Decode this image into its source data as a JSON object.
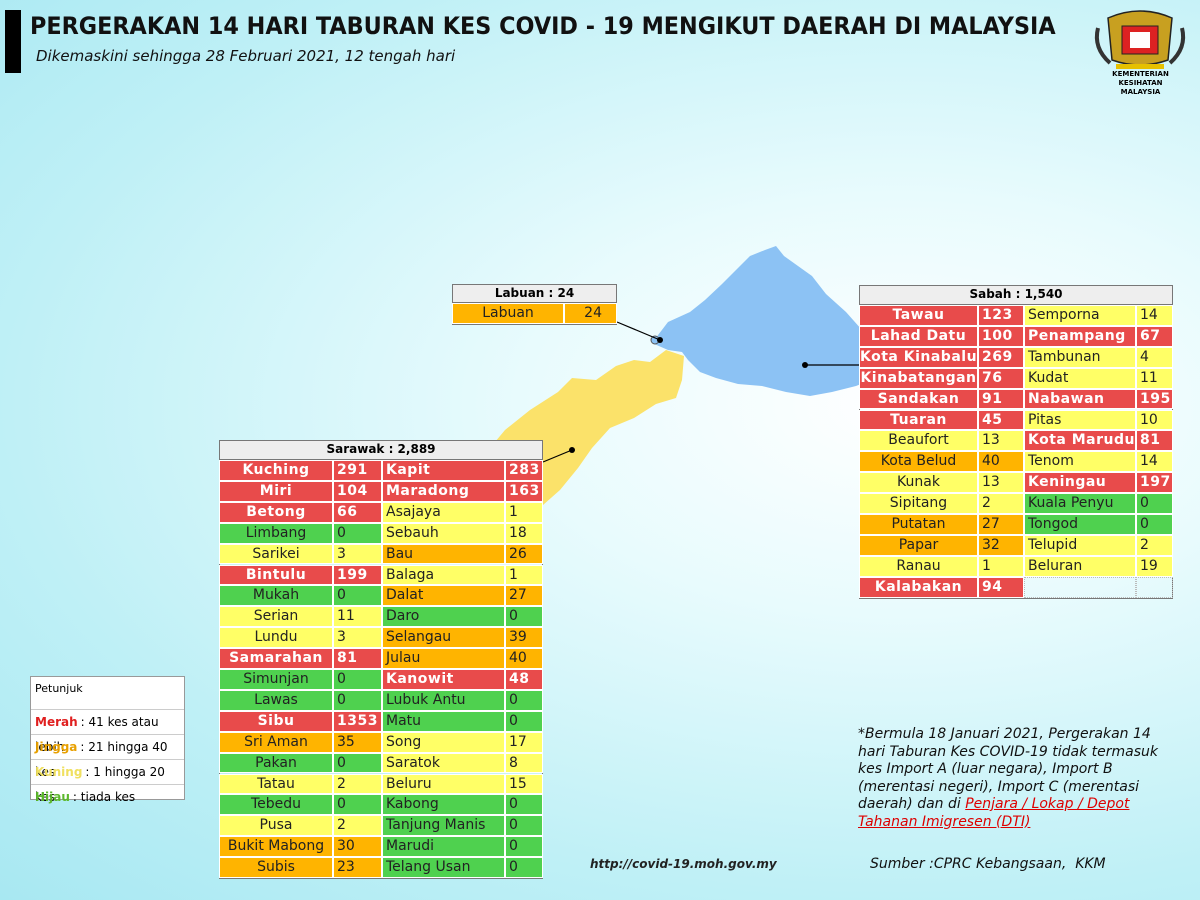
{
  "header": {
    "title": "PERGERAKAN 14 HARI TABURAN KES COVID - 19 MENGIKUT DAERAH DI MALAYSIA",
    "subtitle": "Dikemaskini sehingga 28 Februari 2021, 12 tengah hari"
  },
  "logo": {
    "text": "KEMENTERIAN KESIHATAN MALAYSIA"
  },
  "tables": {
    "labuan": {
      "title": "Labuan : 24",
      "left": [
        {
          "name": "Labuan",
          "count": 24,
          "color": "#ffb400"
        }
      ],
      "right": []
    },
    "sabah": {
      "title": "Sabah : 1,540",
      "left": [
        {
          "name": "Tawau",
          "count": 123,
          "color": "#e84b4b"
        },
        {
          "name": "Lahad Datu",
          "count": 100,
          "color": "#e84b4b"
        },
        {
          "name": "Kota Kinabalu",
          "count": 269,
          "color": "#e84b4b"
        },
        {
          "name": "Kinabatangan",
          "count": 76,
          "color": "#e84b4b"
        },
        {
          "name": "Sandakan",
          "count": 91,
          "color": "#e84b4b"
        },
        {
          "name": "Tuaran",
          "count": 45,
          "color": "#e84b4b"
        },
        {
          "name": "Beaufort",
          "count": 13,
          "color": "#ffff66"
        },
        {
          "name": "Kota Belud",
          "count": 40,
          "color": "#ffb400"
        },
        {
          "name": "Kunak",
          "count": 13,
          "color": "#ffff66"
        },
        {
          "name": "Sipitang",
          "count": 2,
          "color": "#ffff66"
        },
        {
          "name": "Putatan",
          "count": 27,
          "color": "#ffb400"
        },
        {
          "name": "Papar",
          "count": 32,
          "color": "#ffb400"
        },
        {
          "name": "Ranau",
          "count": 1,
          "color": "#ffff66"
        },
        {
          "name": "Kalabakan",
          "count": 94,
          "color": "#e84b4b"
        }
      ],
      "right": [
        {
          "name": "Semporna",
          "count": 14,
          "color": "#ffff66"
        },
        {
          "name": "Penampang",
          "count": 67,
          "color": "#e84b4b"
        },
        {
          "name": "Tambunan",
          "count": 4,
          "color": "#ffff66"
        },
        {
          "name": "Kudat",
          "count": 11,
          "color": "#ffff66"
        },
        {
          "name": "Nabawan",
          "count": 195,
          "color": "#e84b4b"
        },
        {
          "name": "Pitas",
          "count": 10,
          "color": "#ffff66"
        },
        {
          "name": "Kota Marudu",
          "count": 81,
          "color": "#e84b4b"
        },
        {
          "name": "Tenom",
          "count": 14,
          "color": "#ffff66"
        },
        {
          "name": "Keningau",
          "count": 197,
          "color": "#e84b4b"
        },
        {
          "name": "Kuala Penyu",
          "count": 0,
          "color": "#4fd14f"
        },
        {
          "name": "Tongod",
          "count": 0,
          "color": "#4fd14f"
        },
        {
          "name": "Telupid",
          "count": 2,
          "color": "#ffff66"
        },
        {
          "name": "Beluran",
          "count": 19,
          "color": "#ffff66"
        }
      ]
    },
    "sarawak": {
      "title": "Sarawak : 2,889",
      "left": [
        {
          "name": "Kuching",
          "count": 291,
          "color": "#e84b4b"
        },
        {
          "name": "Miri",
          "count": 104,
          "color": "#e84b4b"
        },
        {
          "name": "Betong",
          "count": 66,
          "color": "#e84b4b"
        },
        {
          "name": "Limbang",
          "count": 0,
          "color": "#4fd14f"
        },
        {
          "name": "Sarikei",
          "count": 3,
          "color": "#ffff66"
        },
        {
          "name": "Bintulu",
          "count": 199,
          "color": "#e84b4b"
        },
        {
          "name": "Mukah",
          "count": 0,
          "color": "#4fd14f"
        },
        {
          "name": "Serian",
          "count": 11,
          "color": "#ffff66"
        },
        {
          "name": "Lundu",
          "count": 3,
          "color": "#ffff66"
        },
        {
          "name": "Samarahan",
          "count": 81,
          "color": "#e84b4b"
        },
        {
          "name": "Simunjan",
          "count": 0,
          "color": "#4fd14f"
        },
        {
          "name": "Lawas",
          "count": 0,
          "color": "#4fd14f"
        },
        {
          "name": "Sibu",
          "count": 1353,
          "color": "#e84b4b"
        },
        {
          "name": "Sri Aman",
          "count": 35,
          "color": "#ffb400"
        },
        {
          "name": "Pakan",
          "count": 0,
          "color": "#4fd14f"
        },
        {
          "name": "Tatau",
          "count": 2,
          "color": "#ffff66"
        },
        {
          "name": "Tebedu",
          "count": 0,
          "color": "#4fd14f"
        },
        {
          "name": "Pusa",
          "count": 2,
          "color": "#ffff66"
        },
        {
          "name": "Bukit Mabong",
          "count": 30,
          "color": "#ffb400"
        },
        {
          "name": "Subis",
          "count": 23,
          "color": "#ffb400"
        }
      ],
      "right": [
        {
          "name": "Kapit",
          "count": 283,
          "color": "#e84b4b"
        },
        {
          "name": "Maradong",
          "count": 163,
          "color": "#e84b4b"
        },
        {
          "name": "Asajaya",
          "count": 1,
          "color": "#ffff66"
        },
        {
          "name": "Sebauh",
          "count": 18,
          "color": "#ffff66"
        },
        {
          "name": "Bau",
          "count": 26,
          "color": "#ffb400"
        },
        {
          "name": "Balaga",
          "count": 1,
          "color": "#ffff66"
        },
        {
          "name": "Dalat",
          "count": 27,
          "color": "#ffb400"
        },
        {
          "name": "Daro",
          "count": 0,
          "color": "#4fd14f"
        },
        {
          "name": "Selangau",
          "count": 39,
          "color": "#ffb400"
        },
        {
          "name": "Julau",
          "count": 40,
          "color": "#ffb400"
        },
        {
          "name": "Kanowit",
          "count": 48,
          "color": "#e84b4b"
        },
        {
          "name": "Lubuk Antu",
          "count": 0,
          "color": "#4fd14f"
        },
        {
          "name": "Matu",
          "count": 0,
          "color": "#4fd14f"
        },
        {
          "name": "Song",
          "count": 17,
          "color": "#ffff66"
        },
        {
          "name": "Saratok",
          "count": 8,
          "color": "#ffff66"
        },
        {
          "name": "Beluru",
          "count": 15,
          "color": "#ffff66"
        },
        {
          "name": "Kabong",
          "count": 0,
          "color": "#4fd14f"
        },
        {
          "name": "Tanjung Manis",
          "count": 0,
          "color": "#4fd14f"
        },
        {
          "name": "Marudi",
          "count": 0,
          "color": "#4fd14f"
        },
        {
          "name": "Telang Usan",
          "count": 0,
          "color": "#4fd14f"
        }
      ]
    }
  },
  "legend": {
    "title": "Petunjuk",
    "items": [
      {
        "label": "Merah",
        "text": ": 41 kes atau lebih",
        "color": "#e02020"
      },
      {
        "label": "Jingga",
        "text": ": 21 hingga 40 kes",
        "color": "#e8a000"
      },
      {
        "label": "Kuning",
        "text": ": 1 hingga 20 kes",
        "color": "#f0e060"
      },
      {
        "label": "Hijau",
        "text": ": tiada kes",
        "color": "#5cb82c"
      }
    ]
  },
  "note": {
    "text": "*Bermula 18 Januari 2021, Pergerakan 14 hari Taburan Kes COVID-19 tidak termasuk kes Import A (luar negara), Import B (merentasi negeri), Import C (merentasi daerah) dan di",
    "link": "Penjara / Lokap / Depot Tahanan Imigresen (DTI)"
  },
  "footer": {
    "url": "http://covid-19.moh.gov.my",
    "source": "Sumber :CPRC Kebangsaan,  KKM"
  }
}
